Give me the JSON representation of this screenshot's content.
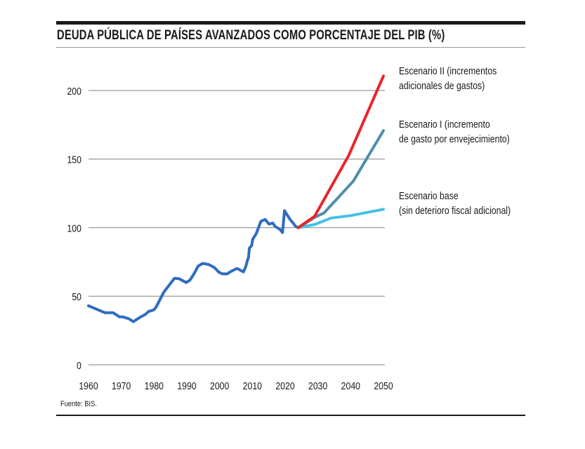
{
  "title": "DEUDA PÚBLICA DE PAÍSES AVANZADOS COMO PORCENTAJE DEL PIB (%)",
  "source": "Fuente: BIS.",
  "chart_data": {
    "type": "line",
    "title": "DEUDA PÚBLICA DE PAÍSES AVANZADOS COMO PORCENTAJE DEL PIB (%)",
    "xlim": [
      1960,
      2050
    ],
    "ylim": [
      0,
      200
    ],
    "x_ticks": [
      "1960",
      "1970",
      "1980",
      "1990",
      "2000",
      "2010",
      "2020",
      "2030",
      "2040",
      "2050"
    ],
    "y_ticks": [
      "0",
      "50",
      "100",
      "150",
      "200"
    ],
    "grid": "horizontal",
    "series": [
      {
        "key": "historical",
        "color": "#2f6cc0",
        "points": [
          [
            1960,
            43
          ],
          [
            1965,
            38
          ],
          [
            1967.5,
            38
          ],
          [
            1969.4,
            35
          ],
          [
            1970.4,
            35
          ],
          [
            1972.3,
            33.6
          ],
          [
            1973.7,
            31.5
          ],
          [
            1975.8,
            34.8
          ],
          [
            1977.3,
            36.6
          ],
          [
            1978.4,
            39
          ],
          [
            1979.8,
            39.9
          ],
          [
            1980.5,
            41.6
          ],
          [
            1983,
            53
          ],
          [
            1986.2,
            63
          ],
          [
            1987.6,
            62.8
          ],
          [
            1989.8,
            60
          ],
          [
            1990.9,
            61.6
          ],
          [
            1992.3,
            66.7
          ],
          [
            1993.4,
            71.8
          ],
          [
            1994.8,
            73.9
          ],
          [
            1996.6,
            73.2
          ],
          [
            1998.4,
            71
          ],
          [
            1999.8,
            67.5
          ],
          [
            2000.9,
            66.3
          ],
          [
            2002.3,
            66.3
          ],
          [
            2003.4,
            68
          ],
          [
            2005.3,
            70.3
          ],
          [
            2007.3,
            67.8
          ],
          [
            2008,
            71.7
          ],
          [
            2008.6,
            77
          ],
          [
            2008.8,
            77.5
          ],
          [
            2009.1,
            85
          ],
          [
            2009.8,
            87
          ],
          [
            2010.1,
            91.5
          ],
          [
            2011.2,
            95.7
          ],
          [
            2012.6,
            104.6
          ],
          [
            2013.9,
            106
          ],
          [
            2015.1,
            102.6
          ],
          [
            2016.2,
            103.4
          ],
          [
            2016.9,
            101
          ],
          [
            2018.4,
            98.7
          ],
          [
            2019.2,
            96.4
          ],
          [
            2019.8,
            112.4
          ],
          [
            2021.6,
            105.7
          ],
          [
            2022.3,
            103.8
          ],
          [
            2023.2,
            100.9
          ],
          [
            2024,
            100
          ]
        ]
      },
      {
        "key": "scenario2",
        "name": "Escenario II (incrementos adicionales de gastos)",
        "color": "#e8262b",
        "points": [
          [
            2024,
            100
          ],
          [
            2029,
            108.3
          ],
          [
            2039.4,
            152.6
          ],
          [
            2050,
            210.6
          ]
        ]
      },
      {
        "key": "scenario1",
        "name": "Escenario I (incremento de gasto por envejecimiento)",
        "color": "#4f8fa8",
        "points": [
          [
            2024,
            100
          ],
          [
            2029,
            107.5
          ],
          [
            2031.9,
            110.8
          ],
          [
            2040.8,
            133.9
          ],
          [
            2050,
            170.8
          ]
        ]
      },
      {
        "key": "base",
        "name": "Escenario base (sin deterioro fiscal adicional)",
        "color": "#45c0e4",
        "points": [
          [
            2024,
            100
          ],
          [
            2029,
            102.3
          ],
          [
            2034,
            107
          ],
          [
            2040,
            108.8
          ],
          [
            2050,
            113.4
          ]
        ]
      }
    ],
    "annotations": [
      {
        "series": "scenario2",
        "lines": [
          "Escenario II (incrementos",
          "adicionales de gastos)"
        ]
      },
      {
        "series": "scenario1",
        "lines": [
          "Escenario I (incremento",
          "de gasto por envejecimiento)"
        ]
      },
      {
        "series": "base",
        "lines": [
          "Escenario base",
          "(sin deterioro fiscal adicional)"
        ]
      }
    ]
  }
}
